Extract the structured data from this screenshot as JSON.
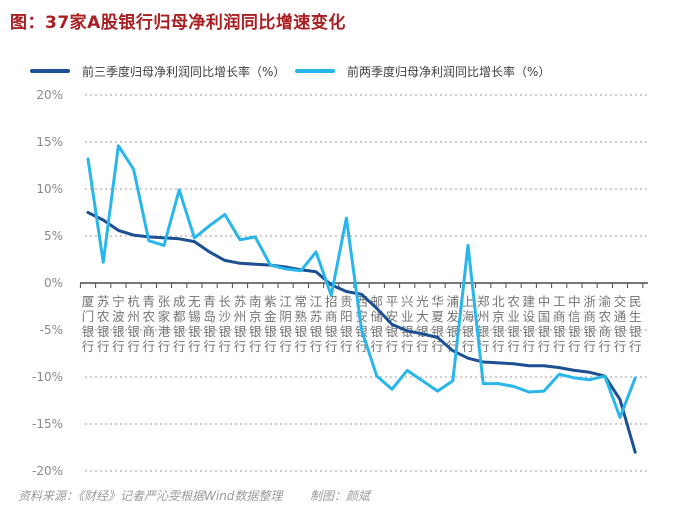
{
  "title": "图：37家A股银行归母净利润同比增速变化",
  "legend": {
    "q3_label": "前三季度归母净利润同比增长率（%）",
    "h1_label": "前两季度归母净利润同比增长率（%）"
  },
  "footer": {
    "source_note": "资料来源：《财经》记者严沁雯根据Wind数据整理",
    "credit_note": "制图：颜斌"
  },
  "colors": {
    "title": "#a81e22",
    "q3_line": "#1d5092",
    "h1_line": "#29b6ea",
    "grid": "#9b9b9b",
    "axis": "#4d4d4d",
    "tick_label": "#8a8a8a",
    "category_label": "#737373"
  },
  "chart_data": {
    "type": "line",
    "title": "图：37家A股银行归母净利润同比增速变化",
    "categories": [
      "厦门银行",
      "苏农银行",
      "宁波银行",
      "杭州银行",
      "青农商行",
      "张家港行",
      "成都银行",
      "无锡银行",
      "青岛银行",
      "长沙银行",
      "苏州银行",
      "南京银行",
      "紫金银行",
      "江阴银行",
      "常熟银行",
      "江苏银行",
      "招商银行",
      "贵阳银行",
      "西安银行",
      "邮储银行",
      "平安银行",
      "兴业银行",
      "光大银行",
      "华夏银行",
      "浦发银行",
      "上海银行",
      "郑州银行",
      "北京银行",
      "农业银行",
      "建设银行",
      "中国银行",
      "工商银行",
      "中信银行",
      "浙商银行",
      "渝农商行",
      "交通银行",
      "民生银行"
    ],
    "series": [
      {
        "name": "前三季度归母净利润同比增长率（%）",
        "color": "#1d5092",
        "values": [
          7.5,
          6.7,
          5.6,
          5.1,
          4.9,
          4.8,
          4.7,
          4.4,
          3.3,
          2.4,
          2.1,
          2.0,
          1.9,
          1.7,
          1.4,
          1.2,
          -0.2,
          -0.9,
          -1.2,
          -2.7,
          -4.4,
          -5.1,
          -5.4,
          -5.8,
          -7.2,
          -8.0,
          -8.4,
          -8.5,
          -8.6,
          -8.8,
          -8.8,
          -9.0,
          -9.3,
          -9.5,
          -9.9,
          -12.4,
          -18.0
        ]
      },
      {
        "name": "前两季度归母净利润同比增长率（%）",
        "color": "#29b6ea",
        "values": [
          13.2,
          2.2,
          14.6,
          12.1,
          4.5,
          4.0,
          9.9,
          4.8,
          6.1,
          7.3,
          4.6,
          4.9,
          1.9,
          1.5,
          1.3,
          3.3,
          -1.3,
          6.9,
          -5.0,
          -9.9,
          -11.3,
          -9.3,
          -10.4,
          -11.5,
          -10.4,
          4.0,
          -10.7,
          -10.7,
          -11.0,
          -11.6,
          -11.5,
          -9.7,
          -10.1,
          -10.3,
          -9.9,
          -14.3,
          -10.1
        ]
      }
    ],
    "ylim": [
      -20,
      20
    ],
    "yticks": [
      20,
      15,
      10,
      5,
      0,
      -5,
      -10,
      -15,
      -20
    ],
    "ytick_suffix": "%",
    "grid": "horizontal-dashed",
    "legend_position": "top",
    "x_label_orientation": "vertical"
  }
}
